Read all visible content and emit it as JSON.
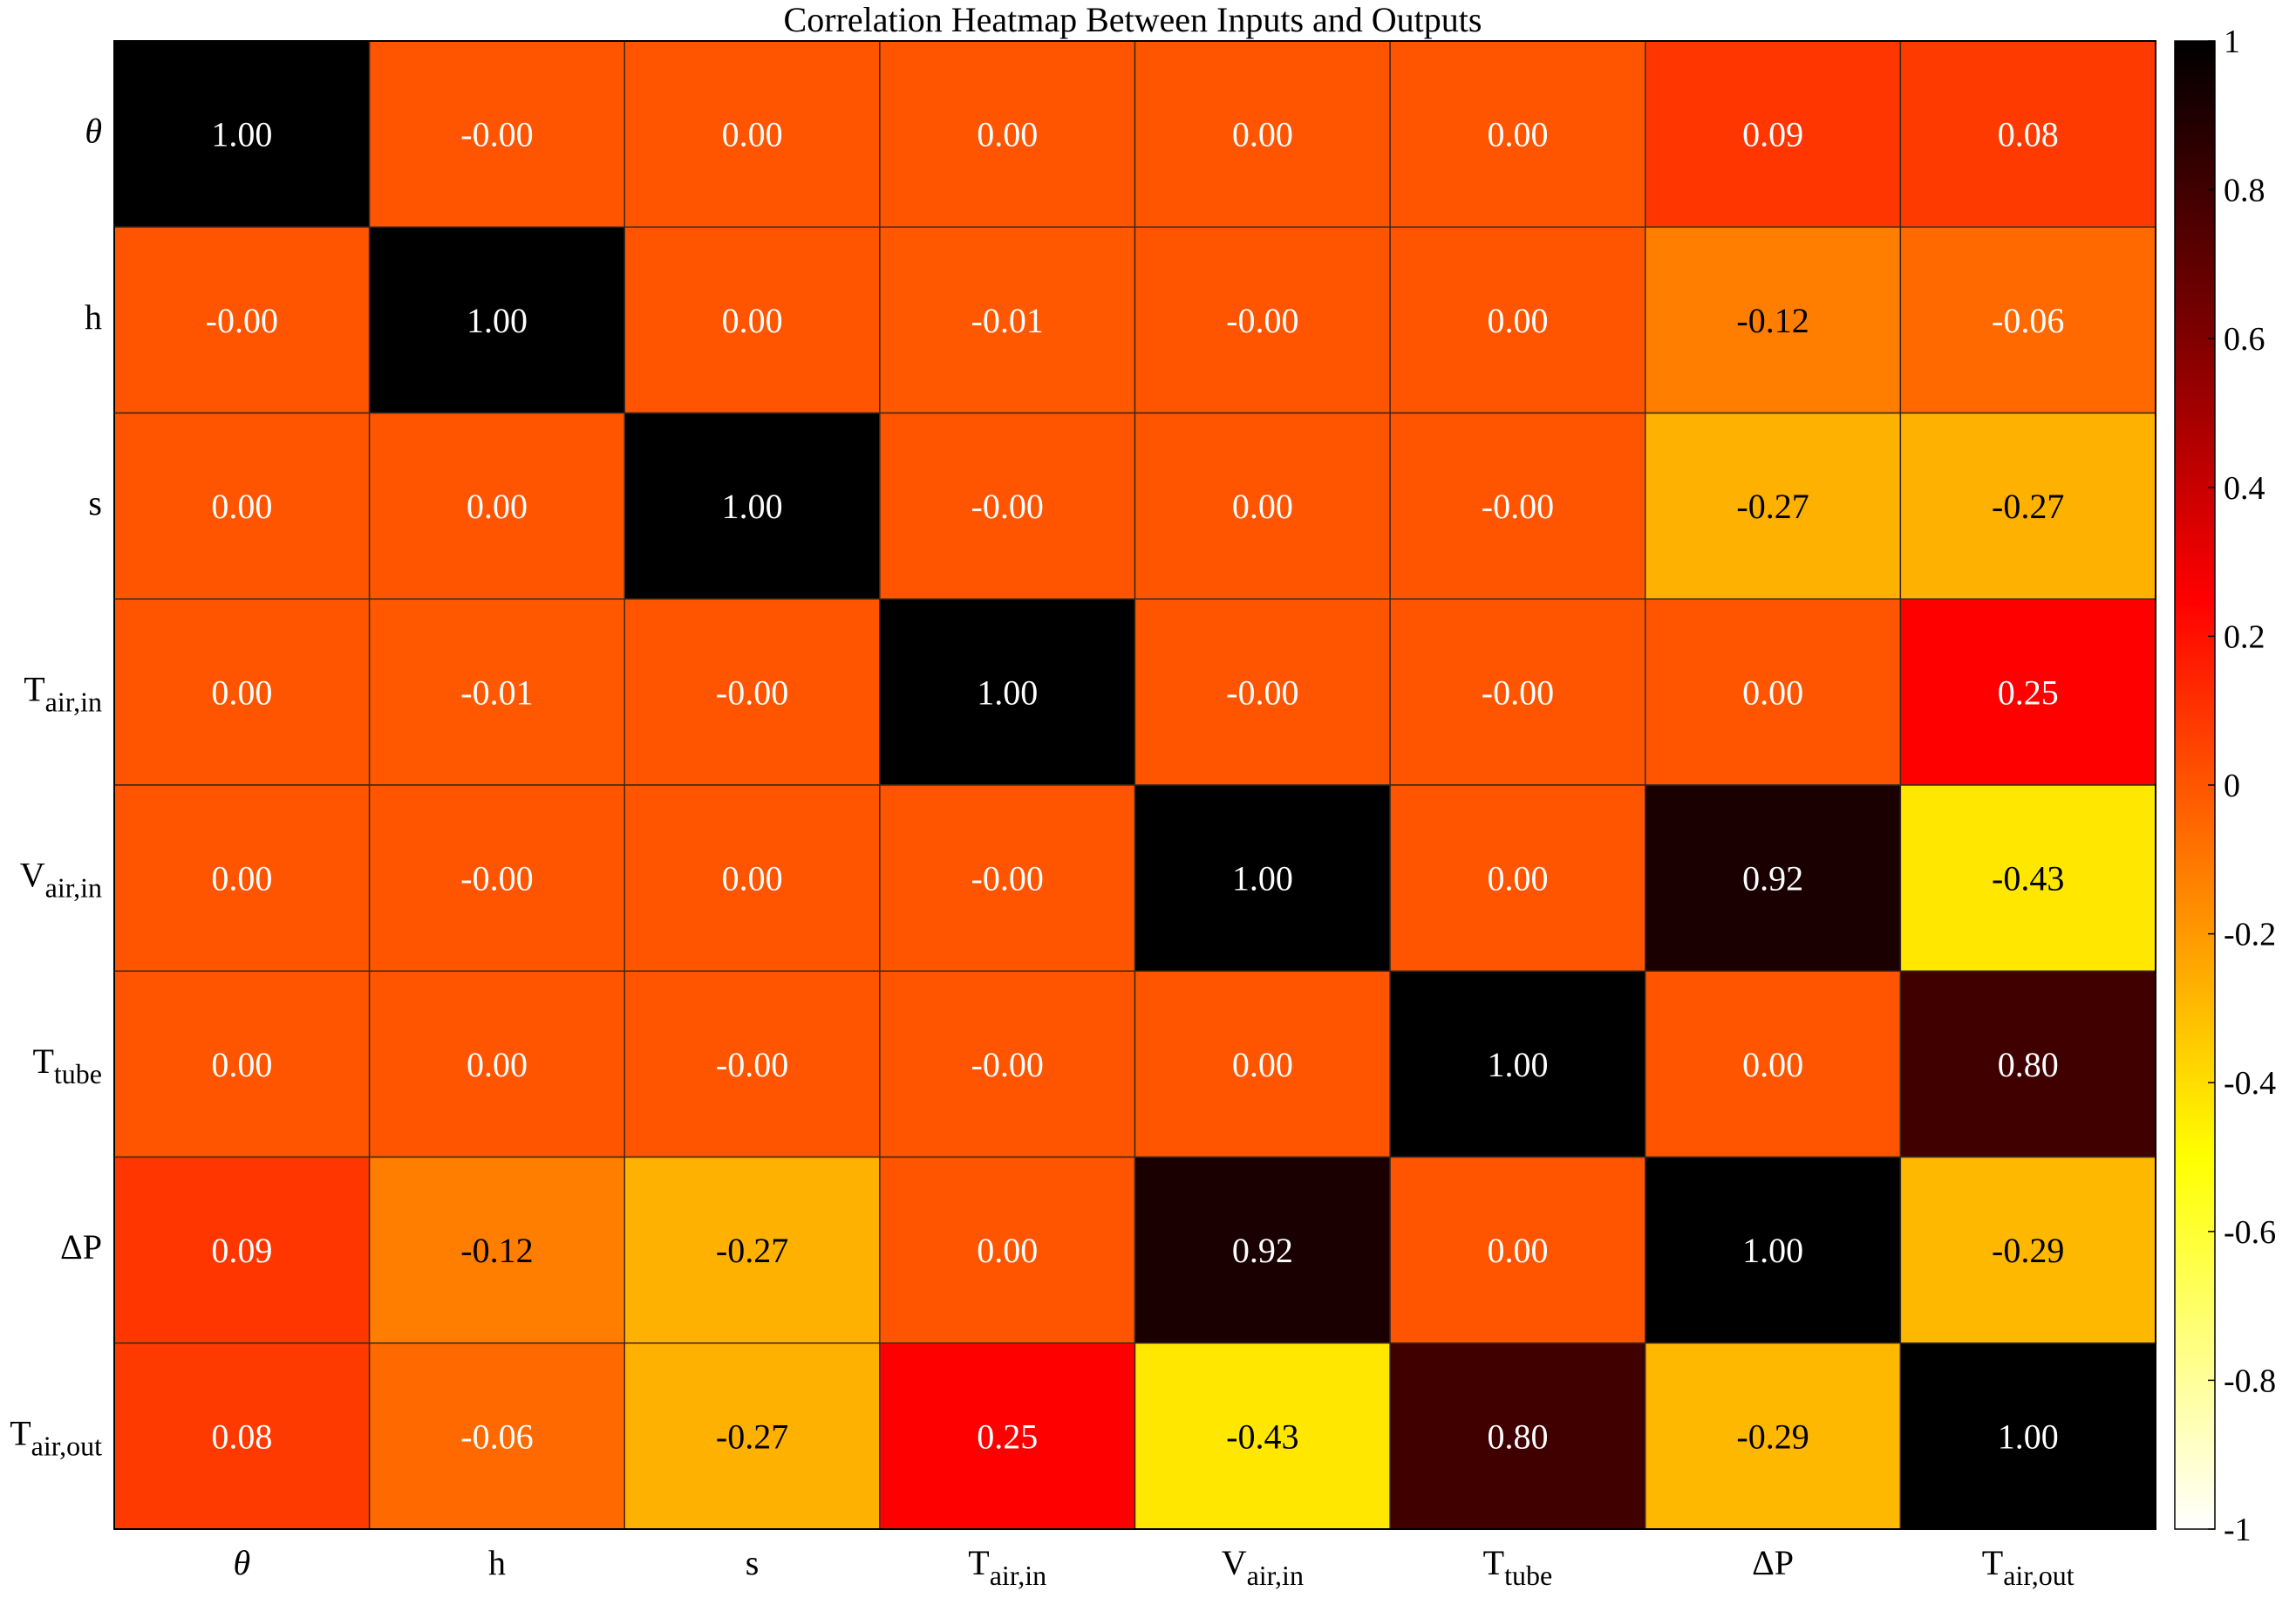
{
  "chart_data": {
    "type": "heatmap",
    "title": "Correlation Heatmap Between Inputs and Outputs",
    "labels": [
      {
        "base": "θ",
        "sub": "",
        "italic": true
      },
      {
        "base": "h",
        "sub": "",
        "italic": false
      },
      {
        "base": "s",
        "sub": "",
        "italic": false
      },
      {
        "base": "T",
        "sub": "air,in",
        "italic": false
      },
      {
        "base": "V",
        "sub": "air,in",
        "italic": false
      },
      {
        "base": "T",
        "sub": "tube",
        "italic": false
      },
      {
        "base": "ΔP",
        "sub": "",
        "italic": false
      },
      {
        "base": "T",
        "sub": "air,out",
        "italic": false
      }
    ],
    "values": [
      [
        1.0,
        -0.0,
        0.0,
        0.0,
        0.0,
        0.0,
        0.09,
        0.08
      ],
      [
        -0.0,
        1.0,
        0.0,
        -0.01,
        -0.0,
        0.0,
        -0.12,
        -0.06
      ],
      [
        0.0,
        0.0,
        1.0,
        -0.0,
        0.0,
        -0.0,
        -0.27,
        -0.27
      ],
      [
        0.0,
        -0.01,
        -0.0,
        1.0,
        -0.0,
        -0.0,
        0.0,
        0.25
      ],
      [
        0.0,
        -0.0,
        0.0,
        -0.0,
        1.0,
        0.0,
        0.92,
        -0.43
      ],
      [
        0.0,
        0.0,
        -0.0,
        -0.0,
        0.0,
        1.0,
        0.0,
        0.8
      ],
      [
        0.09,
        -0.12,
        -0.27,
        0.0,
        0.92,
        0.0,
        1.0,
        -0.29
      ],
      [
        0.08,
        -0.06,
        -0.27,
        0.25,
        -0.43,
        0.8,
        -0.29,
        1.0
      ]
    ],
    "value_labels": [
      [
        "1.00",
        "-0.00",
        "0.00",
        "0.00",
        "0.00",
        "0.00",
        "0.09",
        "0.08"
      ],
      [
        "-0.00",
        "1.00",
        "0.00",
        "-0.01",
        "-0.00",
        "0.00",
        "-0.12",
        "-0.06"
      ],
      [
        "0.00",
        "0.00",
        "1.00",
        "-0.00",
        "0.00",
        "-0.00",
        "-0.27",
        "-0.27"
      ],
      [
        "0.00",
        "-0.01",
        "-0.00",
        "1.00",
        "-0.00",
        "-0.00",
        "0.00",
        "0.25"
      ],
      [
        "0.00",
        "-0.00",
        "0.00",
        "-0.00",
        "1.00",
        "0.00",
        "0.92",
        "-0.43"
      ],
      [
        "0.00",
        "0.00",
        "-0.00",
        "-0.00",
        "0.00",
        "1.00",
        "0.00",
        "0.80"
      ],
      [
        "0.09",
        "-0.12",
        "-0.27",
        "0.00",
        "0.92",
        "0.00",
        "1.00",
        "-0.29"
      ],
      [
        "0.08",
        "-0.06",
        "-0.27",
        "0.25",
        "-0.43",
        "0.80",
        "-0.29",
        "1.00"
      ]
    ],
    "colormap": "hot (reversed)",
    "color_range": [
      -1,
      1
    ],
    "colorbar": {
      "ticks": [
        1,
        0.8,
        0.6,
        0.4,
        0.2,
        0,
        -0.2,
        -0.4,
        -0.6,
        -0.8,
        -1
      ],
      "tick_labels": [
        "1",
        "0.8",
        "0.6",
        "0.4",
        "0.2",
        "0",
        "-0.2",
        "-0.4",
        "-0.6",
        "-0.8",
        "-1"
      ],
      "placement": "right"
    },
    "grid": true
  }
}
